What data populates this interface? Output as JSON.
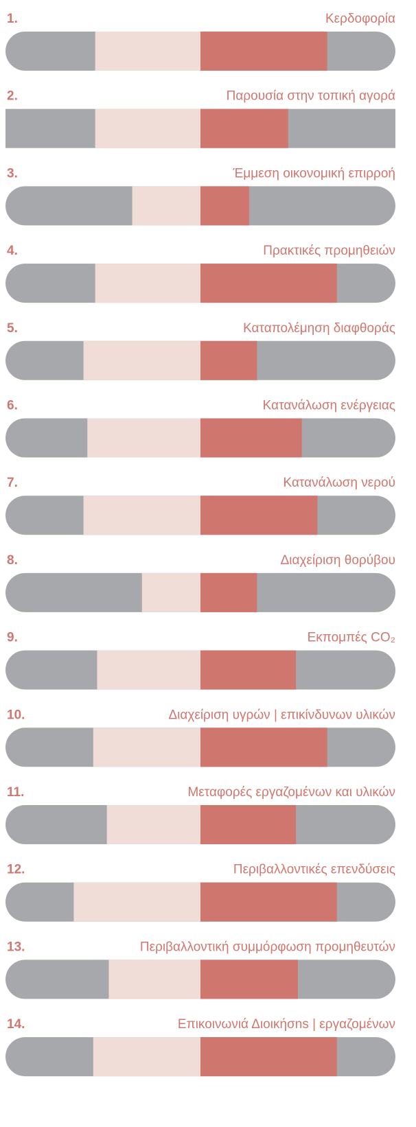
{
  "chart_data": {
    "type": "diverging_bar",
    "labels": [
      "1.",
      "2.",
      "3.",
      "4.",
      "5.",
      "6.",
      "7.",
      "8.",
      "9.",
      "10.",
      "11.",
      "12.",
      "13.",
      "14."
    ],
    "categories": [
      "Κερδοφορία",
      "Παρουσία στην τοπική αγορά",
      "Έμμεση οικονομική επιρροή",
      "Πρακτικές προμηθειών",
      "Καταπολέμηση διαφθοράς",
      "Κατανάλωση ενέργειας",
      "Κατανάλωση νερού",
      "Διαχείριση θορύβου",
      "Εκπομπές CO₂",
      "Διαχείριση υγρών | επικίνδυνων υλικών",
      "Μεταφορές εργαζομένων και υλικών",
      "Περιβαλλοντικές επενδύσεις",
      "Περιβαλλοντική συμμόρφωση προμηθευτών",
      "Επικοινωνιά Διοικήσns | εργαζομένων"
    ],
    "xlim": [
      -100,
      100
    ],
    "background_color": "#a7a8ac",
    "rounded": [
      true,
      false,
      true,
      true,
      true,
      true,
      true,
      true,
      true,
      true,
      true,
      true,
      true,
      true
    ],
    "series": [
      {
        "color": "#f0ddd8",
        "values": [
          -54,
          -54,
          -35,
          -54,
          -60,
          -58,
          -60,
          -30,
          -53,
          -55,
          -48,
          -65,
          -47,
          -55
        ]
      },
      {
        "color": "#cf766f",
        "values": [
          65,
          45,
          25,
          70,
          29,
          52,
          60,
          29,
          49,
          65,
          49,
          70,
          50,
          70
        ]
      }
    ]
  }
}
